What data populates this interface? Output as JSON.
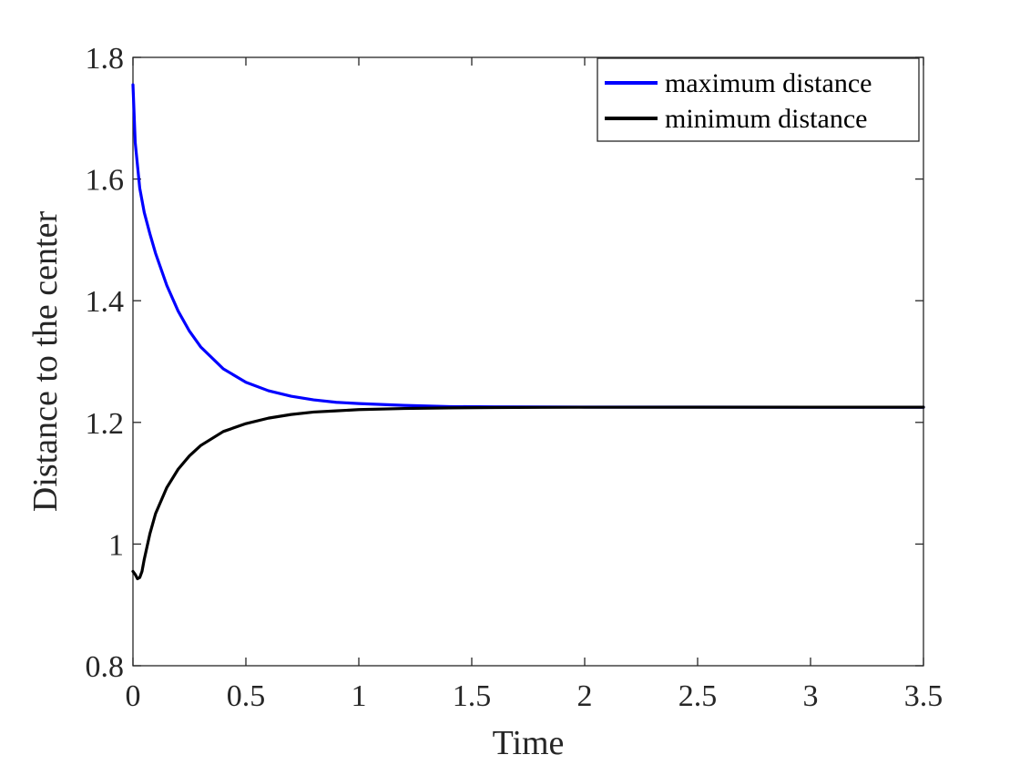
{
  "chart_data": {
    "type": "line",
    "title": "",
    "xlabel": "Time",
    "ylabel": "Distance to the center",
    "xlim": [
      0,
      3.5
    ],
    "ylim": [
      0.8,
      1.8
    ],
    "xticks": [
      0,
      0.5,
      1,
      1.5,
      2,
      2.5,
      3,
      3.5
    ],
    "xtick_labels": [
      "0",
      "0.5",
      "1",
      "1.5",
      "2",
      "2.5",
      "3",
      "3.5"
    ],
    "yticks": [
      0.8,
      1.0,
      1.2,
      1.4,
      1.6,
      1.8
    ],
    "ytick_labels": [
      "0.8",
      "1",
      "1.2",
      "1.4",
      "1.6",
      "1.8"
    ],
    "grid": false,
    "legend_position": "top-right",
    "series": [
      {
        "name": "maximum distance",
        "color": "#0000ff",
        "x": [
          0,
          0.01,
          0.03,
          0.05,
          0.075,
          0.1,
          0.15,
          0.2,
          0.25,
          0.3,
          0.4,
          0.5,
          0.6,
          0.7,
          0.8,
          0.9,
          1.0,
          1.2,
          1.4,
          1.6,
          1.8,
          2.0,
          2.5,
          3.0,
          3.5
        ],
        "y": [
          1.755,
          1.66,
          1.585,
          1.545,
          1.51,
          1.478,
          1.425,
          1.383,
          1.35,
          1.324,
          1.288,
          1.266,
          1.252,
          1.243,
          1.237,
          1.233,
          1.231,
          1.228,
          1.226,
          1.2255,
          1.2253,
          1.2252,
          1.2251,
          1.225,
          1.225
        ]
      },
      {
        "name": "minimum distance",
        "color": "#000000",
        "x": [
          0,
          0.01,
          0.02,
          0.03,
          0.04,
          0.05,
          0.075,
          0.1,
          0.15,
          0.2,
          0.25,
          0.3,
          0.4,
          0.5,
          0.6,
          0.7,
          0.8,
          0.9,
          1.0,
          1.2,
          1.4,
          1.6,
          1.8,
          2.0,
          2.5,
          3.0,
          3.5
        ],
        "y": [
          0.955,
          0.95,
          0.943,
          0.945,
          0.955,
          0.975,
          1.017,
          1.05,
          1.093,
          1.123,
          1.145,
          1.162,
          1.185,
          1.198,
          1.207,
          1.213,
          1.217,
          1.219,
          1.221,
          1.2228,
          1.2238,
          1.2244,
          1.2247,
          1.2249,
          1.225,
          1.225,
          1.225
        ]
      }
    ]
  }
}
